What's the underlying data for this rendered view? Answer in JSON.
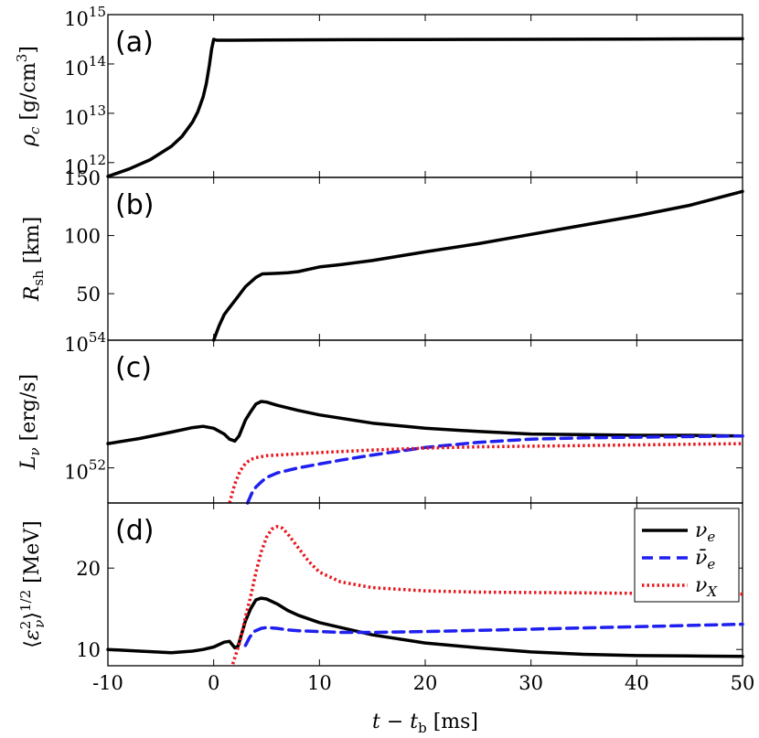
{
  "chart_data": [
    {
      "panel": "(a)",
      "type": "line",
      "ylabel": "ρ_c [g/cm^3]",
      "yscale": "log",
      "ylim_log10": [
        11.7,
        15
      ],
      "xlim": [
        -10,
        50
      ],
      "yticks": [
        {
          "v": 12,
          "label": "10",
          "exp": "12"
        },
        {
          "v": 13,
          "label": "10",
          "exp": "13"
        },
        {
          "v": 14,
          "label": "10",
          "exp": "14"
        },
        {
          "v": 15,
          "label": "10",
          "exp": "15"
        }
      ],
      "series": [
        {
          "name": "rho_c",
          "color": "#000000",
          "dash": "solid",
          "x": [
            -10,
            -8,
            -6,
            -4,
            -3,
            -2,
            -1.5,
            -1,
            -0.7,
            -0.4,
            -0.2,
            0,
            0.3,
            1,
            5,
            10,
            20,
            30,
            40,
            50
          ],
          "y": [
            11.72,
            11.87,
            12.06,
            12.33,
            12.53,
            12.82,
            13.03,
            13.33,
            13.6,
            13.98,
            14.3,
            14.5,
            14.48,
            14.48,
            14.485,
            14.49,
            14.495,
            14.5,
            14.505,
            14.51
          ]
        }
      ]
    },
    {
      "panel": "(b)",
      "type": "line",
      "ylabel": "R_sh [km]",
      "yscale": "linear",
      "ylim": [
        10,
        150
      ],
      "xlim": [
        -10,
        50
      ],
      "yticks": [
        {
          "v": 50,
          "label": "50"
        },
        {
          "v": 100,
          "label": "100"
        },
        {
          "v": 150,
          "label": "150"
        }
      ],
      "series": [
        {
          "name": "R_sh",
          "color": "#000000",
          "dash": "solid",
          "x": [
            0,
            0.5,
            1,
            1.4,
            2,
            3,
            4,
            4.6,
            6,
            7,
            8,
            9,
            10,
            12,
            15,
            20,
            25,
            30,
            35,
            40,
            45,
            50
          ],
          "y": [
            10,
            22,
            32,
            37,
            44,
            56,
            64,
            67,
            67.5,
            68,
            69,
            71,
            73,
            75,
            78.5,
            86,
            93,
            101,
            109,
            117,
            126,
            138
          ]
        }
      ]
    },
    {
      "panel": "(c)",
      "type": "line",
      "ylabel": "L_ν [erg/s]",
      "yscale": "log",
      "ylim_log10": [
        51.45,
        54
      ],
      "xlim": [
        -10,
        50
      ],
      "yticks": [
        {
          "v": 52,
          "label": "10",
          "exp": "52"
        },
        {
          "v": 54,
          "label": "10",
          "exp": "54"
        }
      ],
      "series": [
        {
          "name": "ν_e",
          "color": "#000000",
          "dash": "solid",
          "x": [
            -10,
            -7,
            -4,
            -2,
            -1,
            0,
            1,
            1.5,
            2,
            2.4,
            3,
            3.5,
            4,
            4.5,
            5,
            6,
            8,
            10,
            15,
            20,
            25,
            30,
            35,
            40,
            45,
            50
          ],
          "y": [
            52.38,
            52.46,
            52.56,
            52.63,
            52.65,
            52.62,
            52.53,
            52.45,
            52.42,
            52.5,
            52.75,
            52.88,
            53.0,
            53.04,
            53.03,
            52.98,
            52.9,
            52.83,
            52.7,
            52.62,
            52.57,
            52.53,
            52.52,
            52.51,
            52.51,
            52.5
          ]
        },
        {
          "name": "ν̄_e",
          "color": "#1f1ff0",
          "dash": "dashed",
          "x": [
            3.2,
            3.6,
            4,
            4.5,
            5,
            6,
            8,
            10,
            12,
            15,
            20,
            25,
            30,
            35,
            40,
            45,
            50
          ],
          "y": [
            51.45,
            51.6,
            51.7,
            51.78,
            51.85,
            51.92,
            52.0,
            52.06,
            52.12,
            52.2,
            52.32,
            52.4,
            52.45,
            52.47,
            52.48,
            52.49,
            52.5
          ]
        },
        {
          "name": "ν_X",
          "color": "#e8161d",
          "dash": "dotted",
          "x": [
            1.5,
            2,
            2.5,
            3,
            3.5,
            4,
            5,
            6,
            8,
            10,
            15,
            20,
            25,
            30,
            35,
            40,
            45,
            50
          ],
          "y": [
            51.45,
            51.75,
            51.95,
            52.07,
            52.13,
            52.16,
            52.19,
            52.2,
            52.22,
            52.24,
            52.28,
            52.31,
            52.33,
            52.34,
            52.35,
            52.36,
            52.37,
            52.38
          ]
        }
      ]
    },
    {
      "panel": "(d)",
      "type": "line",
      "ylabel": "⟨ε_ν^2⟩^{1/2} [MeV]",
      "yscale": "linear",
      "ylim": [
        8,
        28
      ],
      "xlim": [
        -10,
        50
      ],
      "yticks": [
        {
          "v": 10,
          "label": "10"
        },
        {
          "v": 20,
          "label": "20"
        }
      ],
      "xticks": [
        {
          "v": -10,
          "label": "-10"
        },
        {
          "v": 0,
          "label": "0"
        },
        {
          "v": 10,
          "label": "10"
        },
        {
          "v": 20,
          "label": "20"
        },
        {
          "v": 30,
          "label": "30"
        },
        {
          "v": 40,
          "label": "40"
        },
        {
          "v": 50,
          "label": "50"
        }
      ],
      "xlabel": "t − t_b [ms]",
      "series": [
        {
          "name": "ν_e",
          "color": "#000000",
          "dash": "solid",
          "x": [
            -10,
            -7,
            -4,
            -2,
            -1,
            0,
            0.5,
            1,
            1.5,
            2,
            2.3,
            3,
            3.5,
            4,
            4.5,
            5,
            6,
            7,
            8,
            10,
            15,
            20,
            25,
            30,
            35,
            40,
            45,
            50
          ],
          "y": [
            10,
            9.8,
            9.6,
            9.8,
            10,
            10.3,
            10.6,
            10.9,
            11,
            10.2,
            10.4,
            13.5,
            15,
            16.1,
            16.3,
            16.2,
            15.6,
            14.8,
            14.2,
            13.3,
            11.8,
            10.8,
            10.2,
            9.7,
            9.4,
            9.25,
            9.2,
            9.15
          ]
        },
        {
          "name": "ν̄_e",
          "color": "#1f1ff0",
          "dash": "dashed",
          "x": [
            3,
            3.4,
            3.8,
            4.5,
            5,
            6,
            7,
            8,
            10,
            12,
            15,
            20,
            25,
            30,
            35,
            40,
            45,
            50
          ],
          "y": [
            10.5,
            11.5,
            12.2,
            12.6,
            12.7,
            12.6,
            12.4,
            12.3,
            12.2,
            12.1,
            12.1,
            12.2,
            12.35,
            12.5,
            12.65,
            12.8,
            12.95,
            13.1
          ]
        },
        {
          "name": "ν_X",
          "color": "#e8161d",
          "dash": "dotted",
          "x": [
            1.8,
            2.5,
            3,
            3.5,
            4,
            4.5,
            5,
            5.5,
            6,
            6.5,
            7,
            8,
            9,
            10,
            12,
            15,
            20,
            25,
            30,
            35,
            40,
            45,
            50
          ],
          "y": [
            8.2,
            11,
            14,
            16.5,
            19.5,
            22,
            23.8,
            24.8,
            25.1,
            24.9,
            24.2,
            22.5,
            20.8,
            19.5,
            18.3,
            17.6,
            17.2,
            17.05,
            17.0,
            16.95,
            16.9,
            16.85,
            16.8
          ]
        }
      ],
      "legend": {
        "position": "top-right",
        "entries": [
          "ν_e",
          "ν̄_e",
          "ν_X"
        ]
      }
    }
  ]
}
